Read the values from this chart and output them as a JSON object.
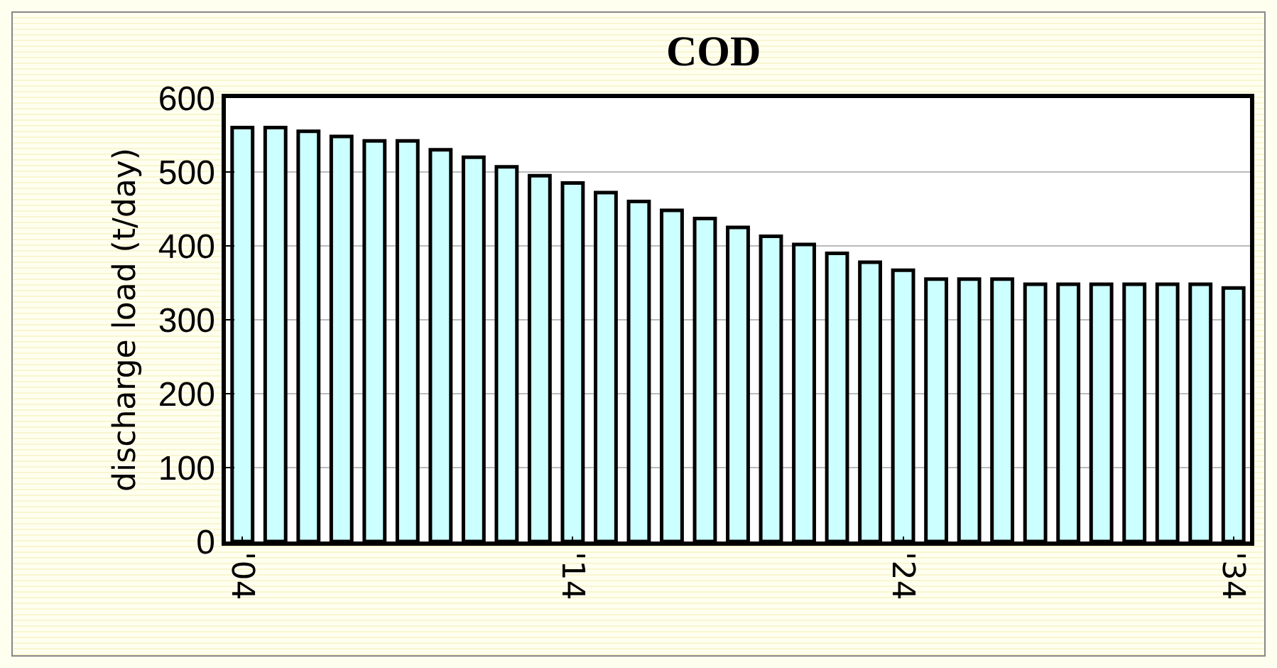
{
  "chart_data": {
    "type": "bar",
    "title": "COD",
    "ylabel": "discharge load (t/day)",
    "categories": [
      "'04",
      null,
      null,
      null,
      null,
      null,
      null,
      null,
      null,
      null,
      "'14",
      null,
      null,
      null,
      null,
      null,
      null,
      null,
      null,
      null,
      "'24",
      null,
      null,
      null,
      null,
      null,
      null,
      null,
      null,
      null,
      "'34"
    ],
    "values": [
      560,
      560,
      555,
      548,
      542,
      542,
      530,
      520,
      507,
      495,
      485,
      472,
      460,
      448,
      437,
      425,
      413,
      402,
      390,
      378,
      367,
      355,
      355,
      355,
      348,
      348,
      348,
      348,
      348,
      348,
      343
    ],
    "color": "#ccffff",
    "ylim": [
      0,
      600
    ],
    "yticks": [
      0,
      100,
      200,
      300,
      400,
      500,
      600
    ],
    "grid": "y"
  }
}
